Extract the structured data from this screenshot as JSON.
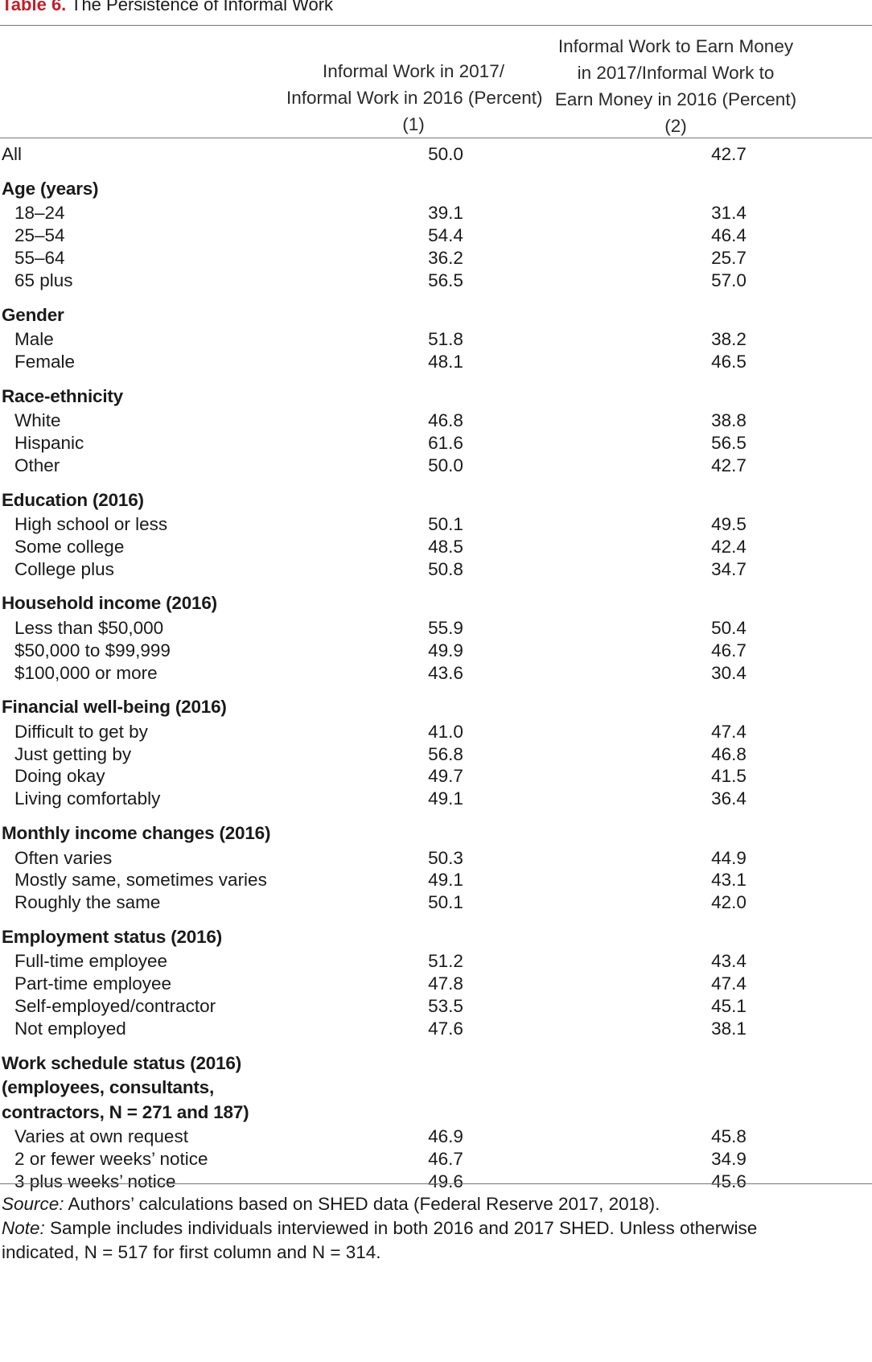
{
  "table": {
    "label": "Table 6.",
    "title": " The Persistence of Informal Work",
    "col1_header": [
      "Informal Work in 2017/",
      "Informal Work in 2016 (Percent)",
      "(1)"
    ],
    "col2_header": [
      "Informal Work to Earn Money",
      "in 2017/Informal Work to",
      "Earn Money in 2016 (Percent)",
      "(2)"
    ],
    "rows": [
      {
        "type": "data",
        "label": "All",
        "indent": false,
        "v1": "50.0",
        "v2": "42.7"
      },
      {
        "type": "section",
        "label": "Age (years)"
      },
      {
        "type": "data",
        "label": "18–24",
        "indent": true,
        "v1": "39.1",
        "v2": "31.4"
      },
      {
        "type": "data",
        "label": "25–54",
        "indent": true,
        "v1": "54.4",
        "v2": "46.4"
      },
      {
        "type": "data",
        "label": "55–64",
        "indent": true,
        "v1": "36.2",
        "v2": "25.7"
      },
      {
        "type": "data",
        "label": "65 plus",
        "indent": true,
        "v1": "56.5",
        "v2": "57.0"
      },
      {
        "type": "section",
        "label": "Gender"
      },
      {
        "type": "data",
        "label": "Male",
        "indent": true,
        "v1": "51.8",
        "v2": "38.2"
      },
      {
        "type": "data",
        "label": "Female",
        "indent": true,
        "v1": "48.1",
        "v2": "46.5"
      },
      {
        "type": "section",
        "label": "Race-ethnicity"
      },
      {
        "type": "data",
        "label": "White",
        "indent": true,
        "v1": "46.8",
        "v2": "38.8"
      },
      {
        "type": "data",
        "label": "Hispanic",
        "indent": true,
        "v1": "61.6",
        "v2": "56.5"
      },
      {
        "type": "data",
        "label": "Other",
        "indent": true,
        "v1": "50.0",
        "v2": "42.7"
      },
      {
        "type": "section",
        "label": "Education (2016)"
      },
      {
        "type": "data",
        "label": "High school or less",
        "indent": true,
        "v1": "50.1",
        "v2": "49.5"
      },
      {
        "type": "data",
        "label": "Some college",
        "indent": true,
        "v1": "48.5",
        "v2": "42.4"
      },
      {
        "type": "data",
        "label": "College plus",
        "indent": true,
        "v1": "50.8",
        "v2": "34.7"
      },
      {
        "type": "section",
        "label": "Household income (2016)"
      },
      {
        "type": "data",
        "label": "Less than $50,000",
        "indent": true,
        "v1": "55.9",
        "v2": "50.4"
      },
      {
        "type": "data",
        "label": "$50,000 to $99,999",
        "indent": true,
        "v1": "49.9",
        "v2": "46.7"
      },
      {
        "type": "data",
        "label": "$100,000 or more",
        "indent": true,
        "v1": "43.6",
        "v2": "30.4"
      },
      {
        "type": "section",
        "label": "Financial well-being (2016)"
      },
      {
        "type": "data",
        "label": "Difficult to get by",
        "indent": true,
        "v1": "41.0",
        "v2": "47.4"
      },
      {
        "type": "data",
        "label": "Just getting by",
        "indent": true,
        "v1": "56.8",
        "v2": "46.8"
      },
      {
        "type": "data",
        "label": "Doing okay",
        "indent": true,
        "v1": "49.7",
        "v2": "41.5"
      },
      {
        "type": "data",
        "label": "Living comfortably",
        "indent": true,
        "v1": "49.1",
        "v2": "36.4"
      },
      {
        "type": "section",
        "label": "Monthly income changes (2016)"
      },
      {
        "type": "data",
        "label": "Often varies",
        "indent": true,
        "v1": "50.3",
        "v2": "44.9"
      },
      {
        "type": "data",
        "label": "Mostly same, sometimes varies",
        "indent": true,
        "v1": "49.1",
        "v2": "43.1"
      },
      {
        "type": "data",
        "label": "Roughly the same",
        "indent": true,
        "v1": "50.1",
        "v2": "42.0"
      },
      {
        "type": "section",
        "label": "Employment status (2016)"
      },
      {
        "type": "data",
        "label": "Full-time employee",
        "indent": true,
        "v1": "51.2",
        "v2": "43.4"
      },
      {
        "type": "data",
        "label": "Part-time employee",
        "indent": true,
        "v1": "47.8",
        "v2": "47.4"
      },
      {
        "type": "data",
        "label": "Self-employed/contractor",
        "indent": true,
        "v1": "53.5",
        "v2": "45.1"
      },
      {
        "type": "data",
        "label": "Not employed",
        "indent": true,
        "v1": "47.6",
        "v2": "38.1"
      },
      {
        "type": "section",
        "label": "Work schedule status (2016)"
      },
      {
        "type": "section",
        "label": "(employees, consultants,"
      },
      {
        "type": "section",
        "label": "contractors, N = 271 and 187)"
      },
      {
        "type": "data",
        "label": "Varies at own request",
        "indent": true,
        "v1": "46.9",
        "v2": "45.8"
      },
      {
        "type": "data",
        "label": "2 or fewer weeks’ notice",
        "indent": true,
        "v1": "46.7",
        "v2": "34.9"
      },
      {
        "type": "data",
        "label": "3 plus weeks’ notice",
        "indent": true,
        "v1": "49.6",
        "v2": "45.6"
      }
    ],
    "source_label": "Source:",
    "source_text": " Authors’ calculations based on SHED data (Federal Reserve 2017, 2018).",
    "note_label": "Note:",
    "note_text_1": " Sample includes individuals interviewed in both 2016 and 2017 SHED. Unless otherwise",
    "note_text_2": "indicated, N = 517 for first column and N = 314."
  },
  "colors": {
    "label_red": "#c0202a",
    "rule_gray": "#777777",
    "text": "#1a1a1a"
  }
}
